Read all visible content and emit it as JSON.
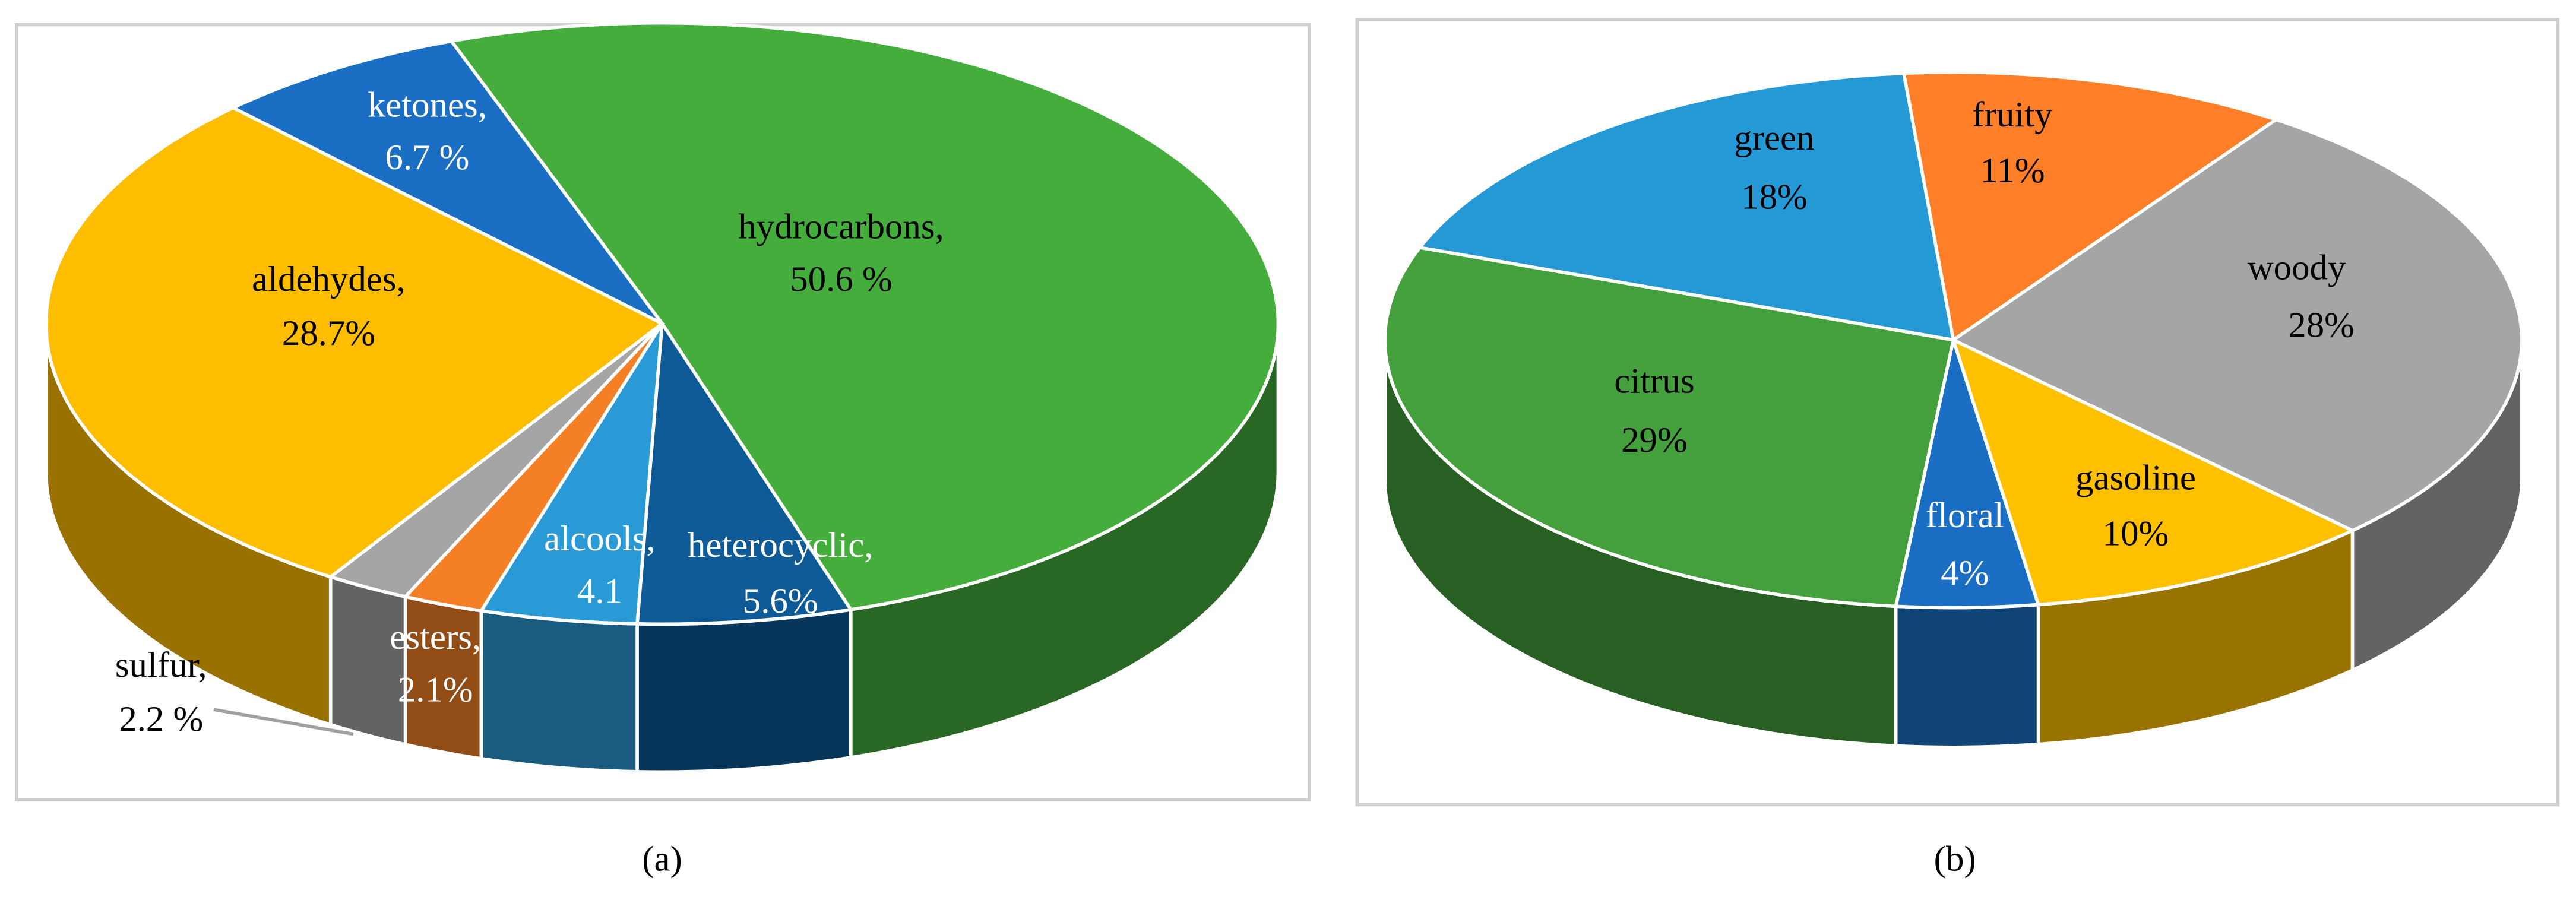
{
  "chart_data": [
    {
      "type": "pie3d",
      "caption": "(a)",
      "categories": [
        "hydrocarbons,",
        "heterocyclic,",
        "alcools,",
        "esters,",
        "sulfur,",
        "aldehydes,",
        "ketones,"
      ],
      "values": [
        50.6,
        5.6,
        4.1,
        2.1,
        2.2,
        28.7,
        6.7
      ],
      "value_labels": [
        "50.6 %",
        "5.6%",
        "4.1",
        "2.1%",
        "2.2 %",
        "28.7%",
        "6.7 %"
      ],
      "colors": [
        "#44ad3c",
        "#0d5a96",
        "#2a9ad6",
        "#f47f25",
        "#a5a5a5",
        "#ffbd00",
        "#1a6fc5"
      ]
    },
    {
      "type": "pie3d",
      "caption": "(b)",
      "categories": [
        "fruity",
        "woody",
        "gasoline",
        "floral",
        "citrus",
        "green"
      ],
      "values": [
        11,
        28,
        10,
        4,
        29,
        18
      ],
      "value_labels": [
        "11%",
        "28%",
        "10%",
        "4%",
        "29%",
        "18%"
      ],
      "colors": [
        "#fe7f27",
        "#a5a5a5",
        "#ffc000",
        "#1a6fc5",
        "#43a03c",
        "#2599d6"
      ]
    }
  ]
}
